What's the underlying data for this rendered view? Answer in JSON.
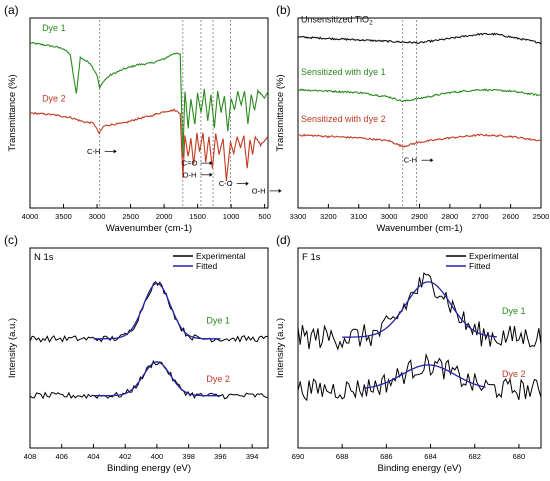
{
  "chart_data": [
    {
      "panel_label": "(a)",
      "type": "line",
      "title": "",
      "xlabel": "Wavenumber (cm-1)",
      "ylabel": "Transmittance (%)",
      "xlim": [
        4000,
        450
      ],
      "x_reversed": true,
      "x_ticks": [
        4000,
        3500,
        3000,
        2500,
        2000,
        1500,
        1000,
        500
      ],
      "y_ticks": [],
      "grid": false,
      "legend": "none",
      "series": [
        {
          "name": "Dye 1",
          "color": "#2a8a1e",
          "points": [
            [
              4000,
              0.88
            ],
            [
              3700,
              0.86
            ],
            [
              3500,
              0.84
            ],
            [
              3400,
              0.8
            ],
            [
              3310,
              0.53
            ],
            [
              3250,
              0.78
            ],
            [
              3100,
              0.74
            ],
            [
              3000,
              0.66
            ],
            [
              2960,
              0.57
            ],
            [
              2900,
              0.62
            ],
            [
              2800,
              0.66
            ],
            [
              2600,
              0.7
            ],
            [
              2400,
              0.73
            ],
            [
              2200,
              0.74
            ],
            [
              2000,
              0.77
            ],
            [
              1850,
              0.81
            ],
            [
              1760,
              0.8
            ],
            [
              1720,
              0.1
            ],
            [
              1690,
              0.55
            ],
            [
              1640,
              0.3
            ],
            [
              1600,
              0.5
            ],
            [
              1540,
              0.32
            ],
            [
              1500,
              0.54
            ],
            [
              1450,
              0.4
            ],
            [
              1400,
              0.56
            ],
            [
              1350,
              0.35
            ],
            [
              1300,
              0.52
            ],
            [
              1250,
              0.3
            ],
            [
              1200,
              0.55
            ],
            [
              1150,
              0.4
            ],
            [
              1100,
              0.52
            ],
            [
              1050,
              0.28
            ],
            [
              1000,
              0.5
            ],
            [
              950,
              0.42
            ],
            [
              900,
              0.55
            ],
            [
              850,
              0.45
            ],
            [
              800,
              0.55
            ],
            [
              750,
              0.33
            ],
            [
              700,
              0.52
            ],
            [
              650,
              0.42
            ],
            [
              600,
              0.55
            ],
            [
              500,
              0.5
            ],
            [
              450,
              0.55
            ]
          ]
        },
        {
          "name": "Dye 2",
          "color": "#c23a22",
          "points": [
            [
              4000,
              0.4
            ],
            [
              3700,
              0.39
            ],
            [
              3400,
              0.37
            ],
            [
              3200,
              0.34
            ],
            [
              3050,
              0.33
            ],
            [
              2970,
              0.26
            ],
            [
              2900,
              0.31
            ],
            [
              2800,
              0.32
            ],
            [
              2600,
              0.33
            ],
            [
              2400,
              0.36
            ],
            [
              2200,
              0.38
            ],
            [
              2000,
              0.41
            ],
            [
              1850,
              0.42
            ],
            [
              1760,
              0.4
            ],
            [
              1720,
              -0.05
            ],
            [
              1690,
              0.25
            ],
            [
              1640,
              0.1
            ],
            [
              1600,
              0.23
            ],
            [
              1560,
              0.05
            ],
            [
              1510,
              0.26
            ],
            [
              1470,
              0.13
            ],
            [
              1420,
              0.27
            ],
            [
              1380,
              0.06
            ],
            [
              1330,
              0.24
            ],
            [
              1280,
              0.02
            ],
            [
              1230,
              0.26
            ],
            [
              1180,
              0.12
            ],
            [
              1120,
              0.22
            ],
            [
              1070,
              -0.06
            ],
            [
              1010,
              0.2
            ],
            [
              960,
              0.12
            ],
            [
              910,
              0.24
            ],
            [
              860,
              0.16
            ],
            [
              810,
              0.24
            ],
            [
              760,
              0.02
            ],
            [
              720,
              0.22
            ],
            [
              680,
              0.12
            ],
            [
              640,
              0.24
            ],
            [
              560,
              0.18
            ],
            [
              450,
              0.24
            ]
          ]
        }
      ],
      "markers": [
        2960,
        1720,
        1450,
        1270,
        1010
      ],
      "annotations": [
        {
          "text": "C-H",
          "x": 3050,
          "y": 0.12
        },
        {
          "text": "C=O",
          "x": 1620,
          "y": 0.04
        },
        {
          "text": "O-H",
          "x": 1620,
          "y": -0.04
        },
        {
          "text": "C-O",
          "x": 1080,
          "y": -0.1
        },
        {
          "text": "O-H",
          "x": 590,
          "y": -0.15
        }
      ],
      "labels": [
        {
          "text": "Dye 1",
          "x": 3820,
          "y": 0.96,
          "color": "#2a8a1e"
        },
        {
          "text": "Dye 2",
          "x": 3820,
          "y": 0.48,
          "color": "#c23a22"
        }
      ]
    },
    {
      "panel_label": "(b)",
      "type": "line",
      "title": "",
      "xlabel": "Wavenumber (cm-1)",
      "ylabel": "Transmittance (%)",
      "xlim": [
        3300,
        2500
      ],
      "x_reversed": true,
      "x_ticks": [
        3300,
        3200,
        3100,
        3000,
        2900,
        2800,
        2700,
        2600,
        2500
      ],
      "y_ticks": [],
      "grid": false,
      "legend": "none",
      "series": [
        {
          "name": "Unsensitized TiO2",
          "color": "#111111",
          "points": [
            [
              3300,
              0.92
            ],
            [
              3200,
              0.91
            ],
            [
              3100,
              0.9
            ],
            [
              3000,
              0.89
            ],
            [
              2900,
              0.88
            ],
            [
              2800,
              0.91
            ],
            [
              2700,
              0.94
            ],
            [
              2650,
              0.94
            ],
            [
              2600,
              0.92
            ],
            [
              2500,
              0.88
            ]
          ]
        },
        {
          "name": "Sensitized with dye 1",
          "color": "#2a8a1e",
          "points": [
            [
              3300,
              0.56
            ],
            [
              3200,
              0.55
            ],
            [
              3100,
              0.54
            ],
            [
              3000,
              0.51
            ],
            [
              2955,
              0.48
            ],
            [
              2900,
              0.5
            ],
            [
              2800,
              0.54
            ],
            [
              2700,
              0.56
            ],
            [
              2600,
              0.55
            ],
            [
              2500,
              0.52
            ]
          ]
        },
        {
          "name": "Sensitized with dye 2",
          "color": "#c23a22",
          "points": [
            [
              3300,
              0.25
            ],
            [
              3200,
              0.24
            ],
            [
              3100,
              0.23
            ],
            [
              3000,
              0.21
            ],
            [
              2955,
              0.17
            ],
            [
              2920,
              0.19
            ],
            [
              2900,
              0.2
            ],
            [
              2800,
              0.23
            ],
            [
              2700,
              0.25
            ],
            [
              2600,
              0.24
            ],
            [
              2500,
              0.21
            ]
          ]
        }
      ],
      "markers": [
        2955,
        2910
      ],
      "annotations": [
        {
          "text": "C-H",
          "x": 2930,
          "y": 0.06
        }
      ],
      "labels": [
        {
          "text": "Unsensitized TiO",
          "sub": "2",
          "x": 3290,
          "y": 1.02,
          "color": "#111111"
        },
        {
          "text": "Sensitized with dye 1",
          "x": 3290,
          "y": 0.66,
          "color": "#2a8a1e"
        },
        {
          "text": "Sensitized with dye 2",
          "x": 3290,
          "y": 0.34,
          "color": "#c23a22"
        }
      ]
    },
    {
      "panel_label": "(c)",
      "type": "line",
      "title": "N 1s",
      "xlabel": "Binding energy (eV)",
      "ylabel": "Intensity (a.u.)",
      "xlim": [
        408,
        393
      ],
      "x_reversed": true,
      "x_ticks": [
        408,
        406,
        404,
        402,
        400,
        398,
        396,
        394
      ],
      "y_ticks": [],
      "grid": false,
      "legend": "top-right",
      "legend_entries": [
        {
          "name": "Experimental",
          "color": "#000000"
        },
        {
          "name": "Fitted",
          "color": "#2424a8"
        }
      ],
      "peaks": [
        {
          "name": "Dye 1",
          "label_color": "#2a8a1e",
          "center": 400.0,
          "sigma": 0.85,
          "height": 0.36,
          "baseline": 0.46,
          "fit_range": [
            404,
            396
          ],
          "noise": 0.02,
          "label_x": 395.4,
          "label_y": 0.56
        },
        {
          "name": "Dye 2",
          "label_color": "#c23a22",
          "center": 400.0,
          "sigma": 0.85,
          "height": 0.22,
          "baseline": 0.09,
          "fit_range": [
            404,
            396
          ],
          "noise": 0.02,
          "label_x": 395.4,
          "label_y": 0.18
        }
      ]
    },
    {
      "panel_label": "(d)",
      "type": "line",
      "title": "F 1s",
      "xlabel": "Binding energy (eV)",
      "ylabel": "Intensity (a.u.)",
      "xlim": [
        690,
        679
      ],
      "x_reversed": true,
      "x_ticks": [
        690,
        688,
        686,
        684,
        682,
        680
      ],
      "y_ticks": [],
      "grid": false,
      "legend": "top-right",
      "legend_entries": [
        {
          "name": "Experimental",
          "color": "#000000"
        },
        {
          "name": "Fitted",
          "color": "#2424a8"
        }
      ],
      "peaks": [
        {
          "name": "Dye 1",
          "label_color": "#2a8a1e",
          "center": 684.1,
          "sigma": 1.0,
          "height": 0.36,
          "baseline": 0.47,
          "fit_range": [
            688,
            681
          ],
          "noise": 0.08,
          "label_x": 679.7,
          "label_y": 0.62
        },
        {
          "name": "Dye 2",
          "label_color": "#c23a22",
          "center": 684.1,
          "sigma": 1.2,
          "height": 0.16,
          "baseline": 0.13,
          "fit_range": [
            687,
            681.5
          ],
          "noise": 0.07,
          "label_x": 679.7,
          "label_y": 0.21
        }
      ]
    }
  ]
}
